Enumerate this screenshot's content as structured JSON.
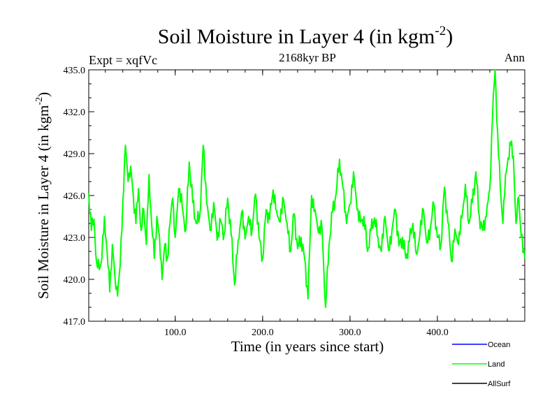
{
  "chart_data": {
    "type": "line",
    "title": "Soil Moisture in Layer 4 (in kgm",
    "title_sup": "-2",
    "title_close": ")",
    "subtitle": "2168kyr BP",
    "top_left_label": "Expt = xqfVc",
    "top_right_label": "Ann",
    "xlabel": "Time (in years since start)",
    "ylabel": "Soil Moisture in Layer 4 (in kgm",
    "ylabel_sup": "-2",
    "ylabel_close": ")",
    "xlim": [
      1,
      500
    ],
    "ylim": [
      417.0,
      435.0
    ],
    "x_ticks": [
      100,
      200,
      300,
      400
    ],
    "x_tick_labels": [
      "100.0",
      "200.0",
      "300.0",
      "400.0"
    ],
    "y_ticks": [
      417,
      420,
      423,
      426,
      429,
      432,
      435
    ],
    "y_tick_labels": [
      "417.0",
      "420.0",
      "423.0",
      "426.0",
      "429.0",
      "432.0",
      "435.0"
    ],
    "legend_position": "bottom-right, below plot",
    "series": [
      {
        "name": "Ocean",
        "color": "#0000ff",
        "values": []
      },
      {
        "name": "Land",
        "color": "#00ff00",
        "keypoints": [
          [
            1,
            426.2
          ],
          [
            4,
            423.5
          ],
          [
            7,
            424.3
          ],
          [
            10,
            421.2
          ],
          [
            13,
            420.7
          ],
          [
            16,
            421.5
          ],
          [
            19,
            424.5
          ],
          [
            22,
            422.0
          ],
          [
            25,
            419.1
          ],
          [
            28,
            422.5
          ],
          [
            31,
            420.2
          ],
          [
            34,
            418.8
          ],
          [
            37,
            421.0
          ],
          [
            40,
            425.6
          ],
          [
            43,
            429.6
          ],
          [
            46,
            427.0
          ],
          [
            49,
            428.1
          ],
          [
            52,
            426.0
          ],
          [
            55,
            424.0
          ],
          [
            58,
            426.5
          ],
          [
            61,
            423.5
          ],
          [
            64,
            425.0
          ],
          [
            67,
            422.5
          ],
          [
            70,
            427.5
          ],
          [
            73,
            424.0
          ],
          [
            76,
            421.5
          ],
          [
            79,
            424.5
          ],
          [
            82,
            423.0
          ],
          [
            85,
            420.0
          ],
          [
            88,
            422.5
          ],
          [
            91,
            421.5
          ],
          [
            94,
            424.0
          ],
          [
            97,
            425.8
          ],
          [
            100,
            423.0
          ],
          [
            104,
            426.5
          ],
          [
            108,
            425.2
          ],
          [
            112,
            423.5
          ],
          [
            116,
            428.4
          ],
          [
            120,
            425.5
          ],
          [
            124,
            424.0
          ],
          [
            128,
            424.5
          ],
          [
            132,
            429.6
          ],
          [
            136,
            425.5
          ],
          [
            140,
            423.5
          ],
          [
            144,
            425.5
          ],
          [
            148,
            422.8
          ],
          [
            152,
            424.2
          ],
          [
            156,
            423.2
          ],
          [
            160,
            425.8
          ],
          [
            164,
            423.2
          ],
          [
            168,
            419.6
          ],
          [
            172,
            422.8
          ],
          [
            176,
            424.8
          ],
          [
            180,
            422.9
          ],
          [
            184,
            424.5
          ],
          [
            188,
            423.5
          ],
          [
            192,
            426.1
          ],
          [
            196,
            423.0
          ],
          [
            200,
            421.5
          ],
          [
            204,
            425.0
          ],
          [
            208,
            424.3
          ],
          [
            212,
            426.4
          ],
          [
            216,
            424.9
          ],
          [
            220,
            424.1
          ],
          [
            224,
            425.7
          ],
          [
            228,
            424.0
          ],
          [
            232,
            422.0
          ],
          [
            236,
            424.7
          ],
          [
            240,
            422.2
          ],
          [
            244,
            423.0
          ],
          [
            248,
            421.5
          ],
          [
            252,
            418.6
          ],
          [
            256,
            426.0
          ],
          [
            260,
            425.0
          ],
          [
            264,
            423.3
          ],
          [
            268,
            423.7
          ],
          [
            272,
            418.0
          ],
          [
            276,
            422.5
          ],
          [
            280,
            424.8
          ],
          [
            284,
            426.1
          ],
          [
            288,
            428.6
          ],
          [
            292,
            426.5
          ],
          [
            296,
            424.0
          ],
          [
            300,
            425.4
          ],
          [
            304,
            427.7
          ],
          [
            308,
            425.0
          ],
          [
            312,
            424.1
          ],
          [
            316,
            424.5
          ],
          [
            320,
            422.0
          ],
          [
            324,
            423.5
          ],
          [
            328,
            424.4
          ],
          [
            332,
            423.0
          ],
          [
            336,
            422.0
          ],
          [
            340,
            424.5
          ],
          [
            344,
            422.1
          ],
          [
            348,
            423.5
          ],
          [
            352,
            425.0
          ],
          [
            356,
            422.4
          ],
          [
            360,
            423.0
          ],
          [
            364,
            421.5
          ],
          [
            368,
            422.7
          ],
          [
            372,
            424.0
          ],
          [
            376,
            421.8
          ],
          [
            380,
            423.2
          ],
          [
            384,
            425.0
          ],
          [
            388,
            422.6
          ],
          [
            392,
            423.7
          ],
          [
            396,
            425.4
          ],
          [
            400,
            423.0
          ],
          [
            404,
            422.5
          ],
          [
            408,
            426.6
          ],
          [
            412,
            424.1
          ],
          [
            416,
            421.3
          ],
          [
            420,
            423.6
          ],
          [
            424,
            422.5
          ],
          [
            428,
            424.4
          ],
          [
            432,
            426.8
          ],
          [
            436,
            424.0
          ],
          [
            440,
            425.5
          ],
          [
            444,
            427.7
          ],
          [
            448,
            424.5
          ],
          [
            452,
            423.5
          ],
          [
            456,
            424.5
          ],
          [
            460,
            426.5
          ],
          [
            463,
            431.5
          ],
          [
            466,
            435.0
          ],
          [
            469,
            430.5
          ],
          [
            472,
            426.5
          ],
          [
            475,
            424.0
          ],
          [
            478,
            427.5
          ],
          [
            481,
            428.7
          ],
          [
            484,
            429.6
          ],
          [
            487,
            428.8
          ],
          [
            490,
            424.0
          ],
          [
            493,
            425.9
          ],
          [
            496,
            423.0
          ],
          [
            500,
            421.5
          ]
        ]
      },
      {
        "name": "AllSurf",
        "color": "#000000",
        "values": []
      }
    ]
  }
}
